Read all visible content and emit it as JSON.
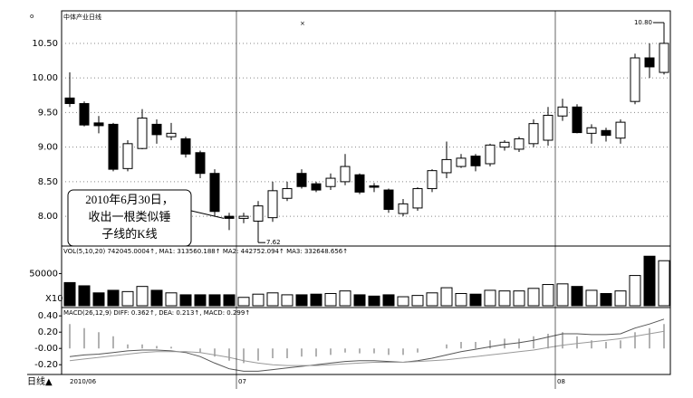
{
  "chart_data": [
    {
      "type": "candlestick",
      "title": "中体产业日线",
      "open": [
        9.71,
        9.63,
        9.35,
        9.33,
        8.69,
        8.98,
        9.33,
        9.15,
        9.12,
        8.92,
        8.62,
        8.0,
        7.97,
        7.93,
        7.98,
        8.26,
        8.62,
        8.47,
        8.43,
        8.5,
        8.6,
        8.44,
        8.38,
        8.04,
        8.12,
        8.4,
        8.63,
        8.72,
        8.87,
        8.76,
        9.0,
        8.97,
        9.05,
        9.1,
        9.45,
        9.58,
        9.2,
        9.24,
        9.13,
        9.66,
        10.29,
        10.08
      ],
      "high": [
        10.08,
        9.66,
        9.45,
        9.35,
        9.1,
        9.55,
        9.4,
        9.35,
        9.15,
        8.95,
        8.68,
        8.05,
        8.05,
        8.22,
        8.5,
        8.5,
        8.68,
        8.5,
        8.62,
        8.9,
        8.62,
        8.48,
        8.4,
        8.25,
        8.42,
        8.68,
        9.08,
        8.9,
        8.9,
        9.05,
        9.1,
        9.15,
        9.4,
        9.58,
        9.7,
        9.62,
        9.33,
        9.28,
        9.4,
        10.35,
        10.5,
        10.8
      ],
      "low": [
        9.58,
        9.3,
        9.2,
        8.65,
        8.65,
        8.97,
        9.05,
        9.1,
        8.85,
        8.55,
        8.0,
        7.8,
        7.9,
        7.62,
        7.92,
        8.22,
        8.4,
        8.35,
        8.38,
        8.45,
        8.32,
        8.35,
        8.05,
        8.0,
        8.08,
        8.35,
        8.55,
        8.7,
        8.65,
        8.72,
        8.95,
        8.93,
        9.0,
        9.02,
        9.38,
        9.2,
        9.05,
        9.08,
        9.05,
        9.62,
        10.0,
        10.05
      ],
      "close": [
        9.63,
        9.32,
        9.31,
        8.68,
        9.05,
        9.42,
        9.18,
        9.2,
        8.9,
        8.62,
        8.07,
        7.97,
        8.0,
        8.15,
        8.37,
        8.4,
        8.43,
        8.38,
        8.55,
        8.72,
        8.35,
        8.42,
        8.1,
        8.18,
        8.4,
        8.66,
        8.82,
        8.84,
        8.73,
        9.03,
        9.07,
        9.12,
        9.34,
        9.46,
        9.58,
        9.21,
        9.28,
        9.17,
        9.36,
        10.29,
        10.16,
        10.5
      ],
      "ylim": [
        7.57,
        10.97
      ],
      "yticks": [
        {
          "value": 8,
          "label": "8.00"
        },
        {
          "value": 8.5,
          "label": "8.50"
        },
        {
          "value": 9,
          "label": "9.00"
        },
        {
          "value": 9.5,
          "label": "9.50"
        },
        {
          "value": 10,
          "label": "10.00"
        },
        {
          "value": 10.5,
          "label": "10.50"
        }
      ],
      "grid": true,
      "annotation": [
        "2010年6月30日，",
        "收出一根类似锤",
        "子线的K线"
      ],
      "low_label": 7.62,
      "high_label": {
        "value": 10.8,
        "label": "10.80"
      }
    },
    {
      "type": "bar",
      "title": "VOL(5,10,20) 742045.0004↑, MA1: 313560.188↑ MA2: 442752.094↑ MA3: 332648.656↑",
      "values": [
        36000,
        31000,
        20000,
        24000,
        22000,
        30000,
        24000,
        20000,
        17000,
        17000,
        17000,
        17000,
        13000,
        18000,
        20000,
        17000,
        17000,
        18000,
        19000,
        23000,
        17000,
        15000,
        17000,
        14000,
        16000,
        20000,
        28000,
        19000,
        18000,
        24000,
        23000,
        23000,
        27000,
        33000,
        34000,
        30000,
        24000,
        19000,
        23000,
        47000,
        77000,
        70000
      ],
      "ylim": [
        0,
        90000
      ],
      "yticks": [
        50000
      ],
      "unit_label": "X10"
    },
    {
      "type": "macd",
      "title": "MACD(26,12,9) DIFF: 0.362↑, DEA: 0.213↑, MACD: 0.299↑",
      "values": [
        0.3,
        0.25,
        0.2,
        0.15,
        0.05,
        0.05,
        0.03,
        0.02,
        0.0,
        -0.05,
        -0.1,
        -0.15,
        -0.18,
        -0.15,
        -0.12,
        -0.12,
        -0.1,
        -0.1,
        -0.08,
        -0.05,
        -0.06,
        -0.06,
        -0.08,
        -0.08,
        -0.05,
        0.0,
        0.05,
        0.08,
        0.08,
        0.1,
        0.12,
        0.12,
        0.15,
        0.18,
        0.2,
        0.15,
        0.1,
        0.08,
        0.1,
        0.2,
        0.25,
        0.3
      ],
      "series": [
        {
          "color": "#555555",
          "values": [
            -0.1,
            -0.08,
            -0.07,
            -0.05,
            -0.03,
            -0.02,
            -0.02,
            -0.03,
            -0.05,
            -0.1,
            -0.18,
            -0.25,
            -0.28,
            -0.28,
            -0.26,
            -0.24,
            -0.22,
            -0.2,
            -0.18,
            -0.16,
            -0.15,
            -0.15,
            -0.16,
            -0.17,
            -0.15,
            -0.12,
            -0.08,
            -0.04,
            -0.01,
            0.02,
            0.05,
            0.07,
            0.1,
            0.14,
            0.18,
            0.18,
            0.17,
            0.17,
            0.18,
            0.25,
            0.3,
            0.36
          ]
        },
        {
          "color": "#999999",
          "values": [
            -0.15,
            -0.13,
            -0.11,
            -0.09,
            -0.07,
            -0.05,
            -0.04,
            -0.04,
            -0.04,
            -0.05,
            -0.08,
            -0.11,
            -0.15,
            -0.18,
            -0.2,
            -0.21,
            -0.21,
            -0.21,
            -0.2,
            -0.19,
            -0.18,
            -0.17,
            -0.17,
            -0.17,
            -0.16,
            -0.15,
            -0.14,
            -0.12,
            -0.1,
            -0.08,
            -0.06,
            -0.04,
            -0.02,
            0.01,
            0.04,
            0.06,
            0.08,
            0.1,
            0.12,
            0.15,
            0.18,
            0.21
          ]
        }
      ],
      "ylim": [
        -0.32,
        0.48
      ],
      "yticks": [
        {
          "value": -0.2,
          "label": "-0.20"
        },
        {
          "value": 0,
          "label": "-0.00"
        },
        {
          "value": 0.2,
          "label": "0.20"
        },
        {
          "value": 0.4,
          "label": "0.40"
        }
      ],
      "xticks": [
        {
          "value": 0,
          "label": "2010/06"
        },
        {
          "value": 12,
          "label": "07"
        },
        {
          "value": 34,
          "label": "08"
        }
      ],
      "period_label": "日线▲"
    }
  ]
}
